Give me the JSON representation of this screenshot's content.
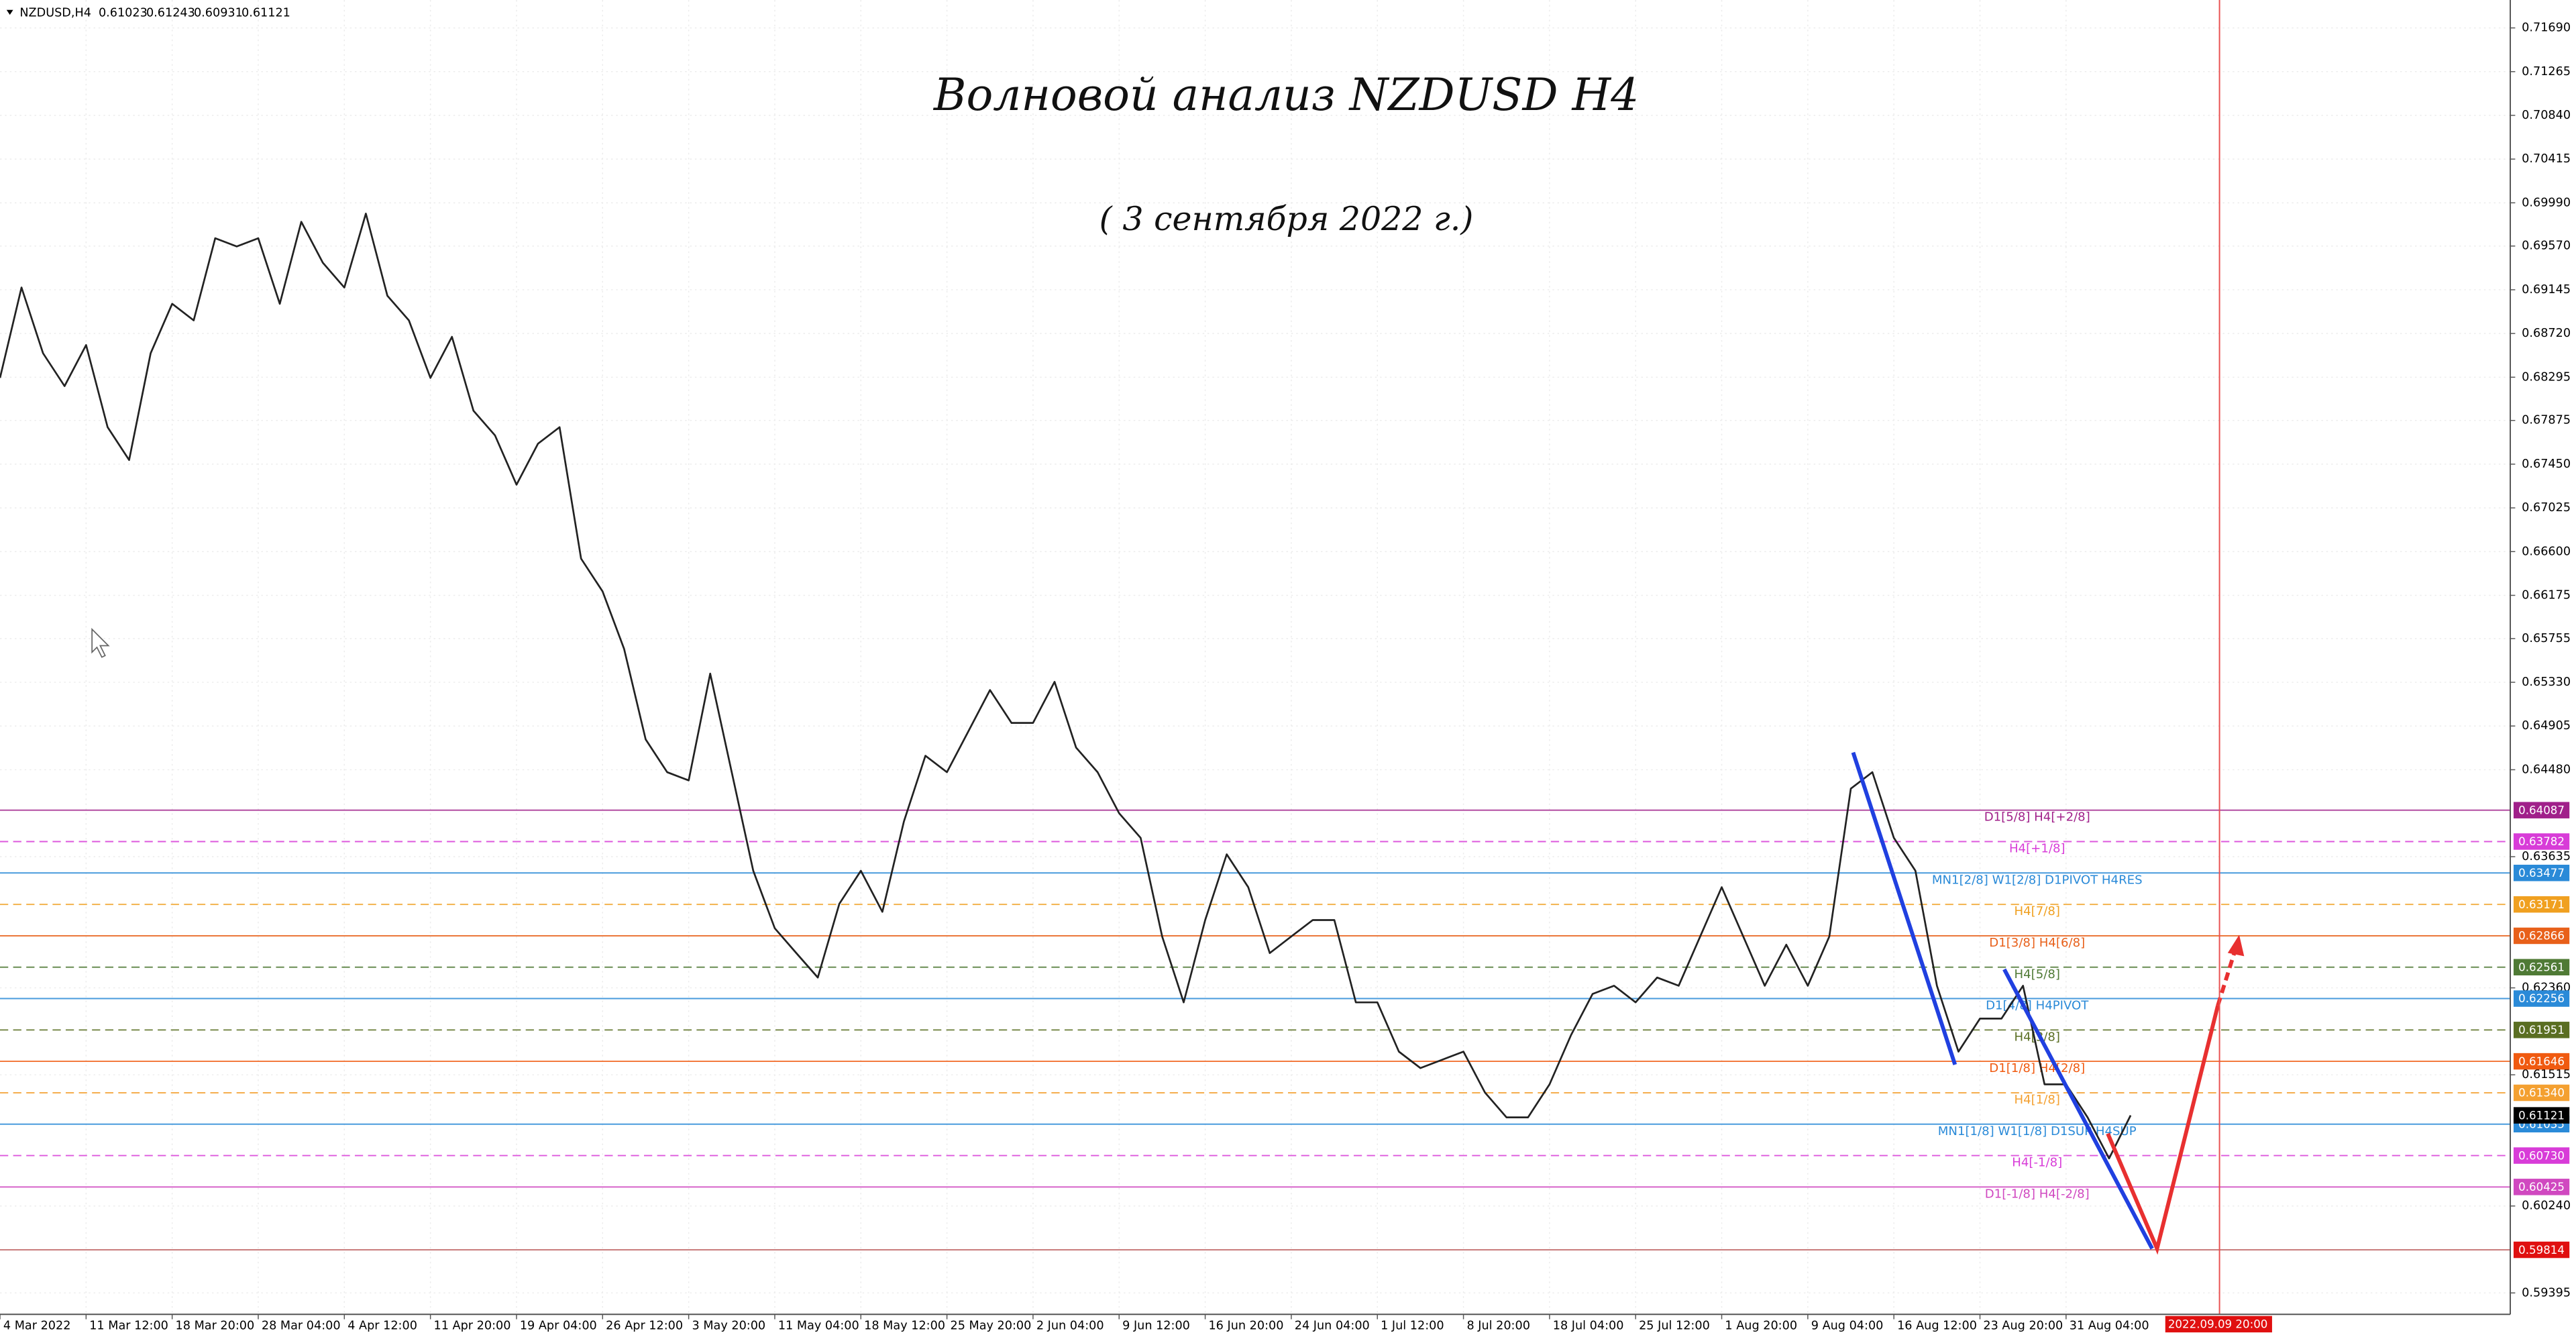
{
  "chart_data": {
    "type": "line",
    "symbol": "NZDUSD,H4",
    "ohlc": [
      0.61023,
      0.61243,
      0.60931,
      0.61121
    ],
    "title": "Волновой анализ NZDUSD H4",
    "subtitle": "( 3 сентября 2022 г.)",
    "color": "#222222",
    "grid": true,
    "ylim": [
      0.59187,
      0.71961
    ],
    "yticks": [
      {
        "value": 0.7169,
        "label": "0.71690"
      },
      {
        "value": 0.71265,
        "label": "0.71265"
      },
      {
        "value": 0.7084,
        "label": "0.70840"
      },
      {
        "value": 0.70415,
        "label": "0.70415"
      },
      {
        "value": 0.6999,
        "label": "0.69990"
      },
      {
        "value": 0.6957,
        "label": "0.69570"
      },
      {
        "value": 0.69145,
        "label": "0.69145"
      },
      {
        "value": 0.6872,
        "label": "0.68720"
      },
      {
        "value": 0.68295,
        "label": "0.68295"
      },
      {
        "value": 0.67875,
        "label": "0.67875"
      },
      {
        "value": 0.6745,
        "label": "0.67450"
      },
      {
        "value": 0.67025,
        "label": "0.67025"
      },
      {
        "value": 0.666,
        "label": "0.66600"
      },
      {
        "value": 0.66175,
        "label": "0.66175"
      },
      {
        "value": 0.65755,
        "label": "0.65755"
      },
      {
        "value": 0.6533,
        "label": "0.65330"
      },
      {
        "value": 0.64905,
        "label": "0.64905"
      },
      {
        "value": 0.6448,
        "label": "0.64480"
      },
      {
        "value": 0.63635,
        "label": "0.63635"
      },
      {
        "value": 0.6236,
        "label": "0.62360"
      },
      {
        "value": 0.61515,
        "label": "0.61515"
      },
      {
        "value": 0.6024,
        "label": "0.60240"
      },
      {
        "value": 0.59395,
        "label": "0.59395"
      }
    ],
    "time_labels": [
      "4 Mar 2022",
      "11 Mar 12:00",
      "18 Mar 20:00",
      "28 Mar 04:00",
      "4 Apr 12:00",
      "11 Apr 20:00",
      "19 Apr 04:00",
      "26 Apr 12:00",
      "3 May 20:00",
      "11 May 04:00",
      "18 May 12:00",
      "25 May 20:00",
      "2 Jun 04:00",
      "9 Jun 12:00",
      "16 Jun 20:00",
      "24 Jun 04:00",
      "1 Jul 12:00",
      "8 Jul 20:00",
      "18 Jul 04:00",
      "25 Jul 12:00",
      "1 Aug 20:00",
      "9 Aug 04:00",
      "16 Aug 12:00",
      "23 Aug 20:00",
      "31 Aug 04:00"
    ],
    "marker_label": "2022.09.09 20:00",
    "values": [
      0.68289,
      0.69167,
      0.68528,
      0.68209,
      0.68608,
      0.6781,
      0.6749,
      0.68528,
      0.69008,
      0.68848,
      0.69646,
      0.69566,
      0.69646,
      0.69008,
      0.69806,
      0.69407,
      0.69167,
      0.69886,
      0.69087,
      0.68848,
      0.68289,
      0.68688,
      0.67969,
      0.6773,
      0.67251,
      0.6765,
      0.6781,
      0.66532,
      0.66213,
      0.65654,
      0.64775,
      0.64456,
      0.64376,
      0.65414,
      0.64456,
      0.63498,
      0.62939,
      0.62699,
      0.6246,
      0.63178,
      0.63498,
      0.63099,
      0.63977,
      0.64616,
      0.64456,
      0.64855,
      0.65255,
      0.64935,
      0.64935,
      0.65334,
      0.64696,
      0.64456,
      0.64057,
      0.63817,
      0.62859,
      0.6222,
      0.63019,
      0.63658,
      0.63338,
      0.62699,
      0.62859,
      0.63019,
      0.63019,
      0.6222,
      0.6222,
      0.61741,
      0.61581,
      0.61661,
      0.61741,
      0.61342,
      0.61102,
      0.61102,
      0.61422,
      0.61901,
      0.623,
      0.6238,
      0.6222,
      0.6246,
      0.6238,
      0.62859,
      0.63338,
      0.62859,
      0.6238,
      0.62779,
      0.6238,
      0.62859,
      0.64296,
      0.64456,
      0.63817,
      0.63498,
      0.6238,
      0.61741,
      0.62061,
      0.62061,
      0.6238,
      0.61422,
      0.61422,
      0.61102,
      0.60703,
      0.61121
    ],
    "levels": [
      {
        "price": 0.64087,
        "text": "D1[5/8] H4[+2/8]",
        "color": "#a0208a",
        "dashed": false
      },
      {
        "price": 0.63782,
        "text": "H4[+1/8]",
        "color": "#d83cd8",
        "dashed": true
      },
      {
        "price": 0.63477,
        "text": "MN1[2/8] W1[2/8] D1PIVOT H4RES",
        "color": "#2a8ad8",
        "dashed": false
      },
      {
        "price": 0.63171,
        "text": "H4[7/8]",
        "color": "#f0a020",
        "dashed": true
      },
      {
        "price": 0.62866,
        "text": "D1[3/8] H4[6/8]",
        "color": "#e8601a",
        "dashed": false
      },
      {
        "price": 0.62561,
        "text": "H4[5/8]",
        "color": "#4f7a35",
        "dashed": true
      },
      {
        "price": 0.62256,
        "text": "D1[4/8] H4PIVOT",
        "color": "#2a8ad8",
        "dashed": false
      },
      {
        "price": 0.61951,
        "text": "H4[3/8]",
        "color": "#5a6e22",
        "dashed": true
      },
      {
        "price": 0.61646,
        "text": "D1[1/8] H4[2/8]",
        "color": "#f05a10",
        "dashed": false
      },
      {
        "price": {
          "value": 0.6134,
          "label": "0.61340"
        },
        "text": "H4[1/8]",
        "color": "#f4a030",
        "dashed": true
      },
      {
        "price": 0.61035,
        "text": "MN1[1/8] W1[1/8] D1SUP H4SUP",
        "color": "#2a8ad8",
        "dashed": false
      },
      {
        "price": {
          "value": 0.6073,
          "label": "0.60730"
        },
        "text": "H4[-1/8]",
        "color": "#d83cd8",
        "dashed": true
      },
      {
        "price": 0.60425,
        "text": "D1[-1/8] H4[-2/8]",
        "color": "#d048c0",
        "dashed": false
      }
    ],
    "current_price": {
      "price": 0.61121,
      "color": "#000000"
    },
    "target_price": {
      "price": 0.59814,
      "color": "#e01010"
    }
  }
}
